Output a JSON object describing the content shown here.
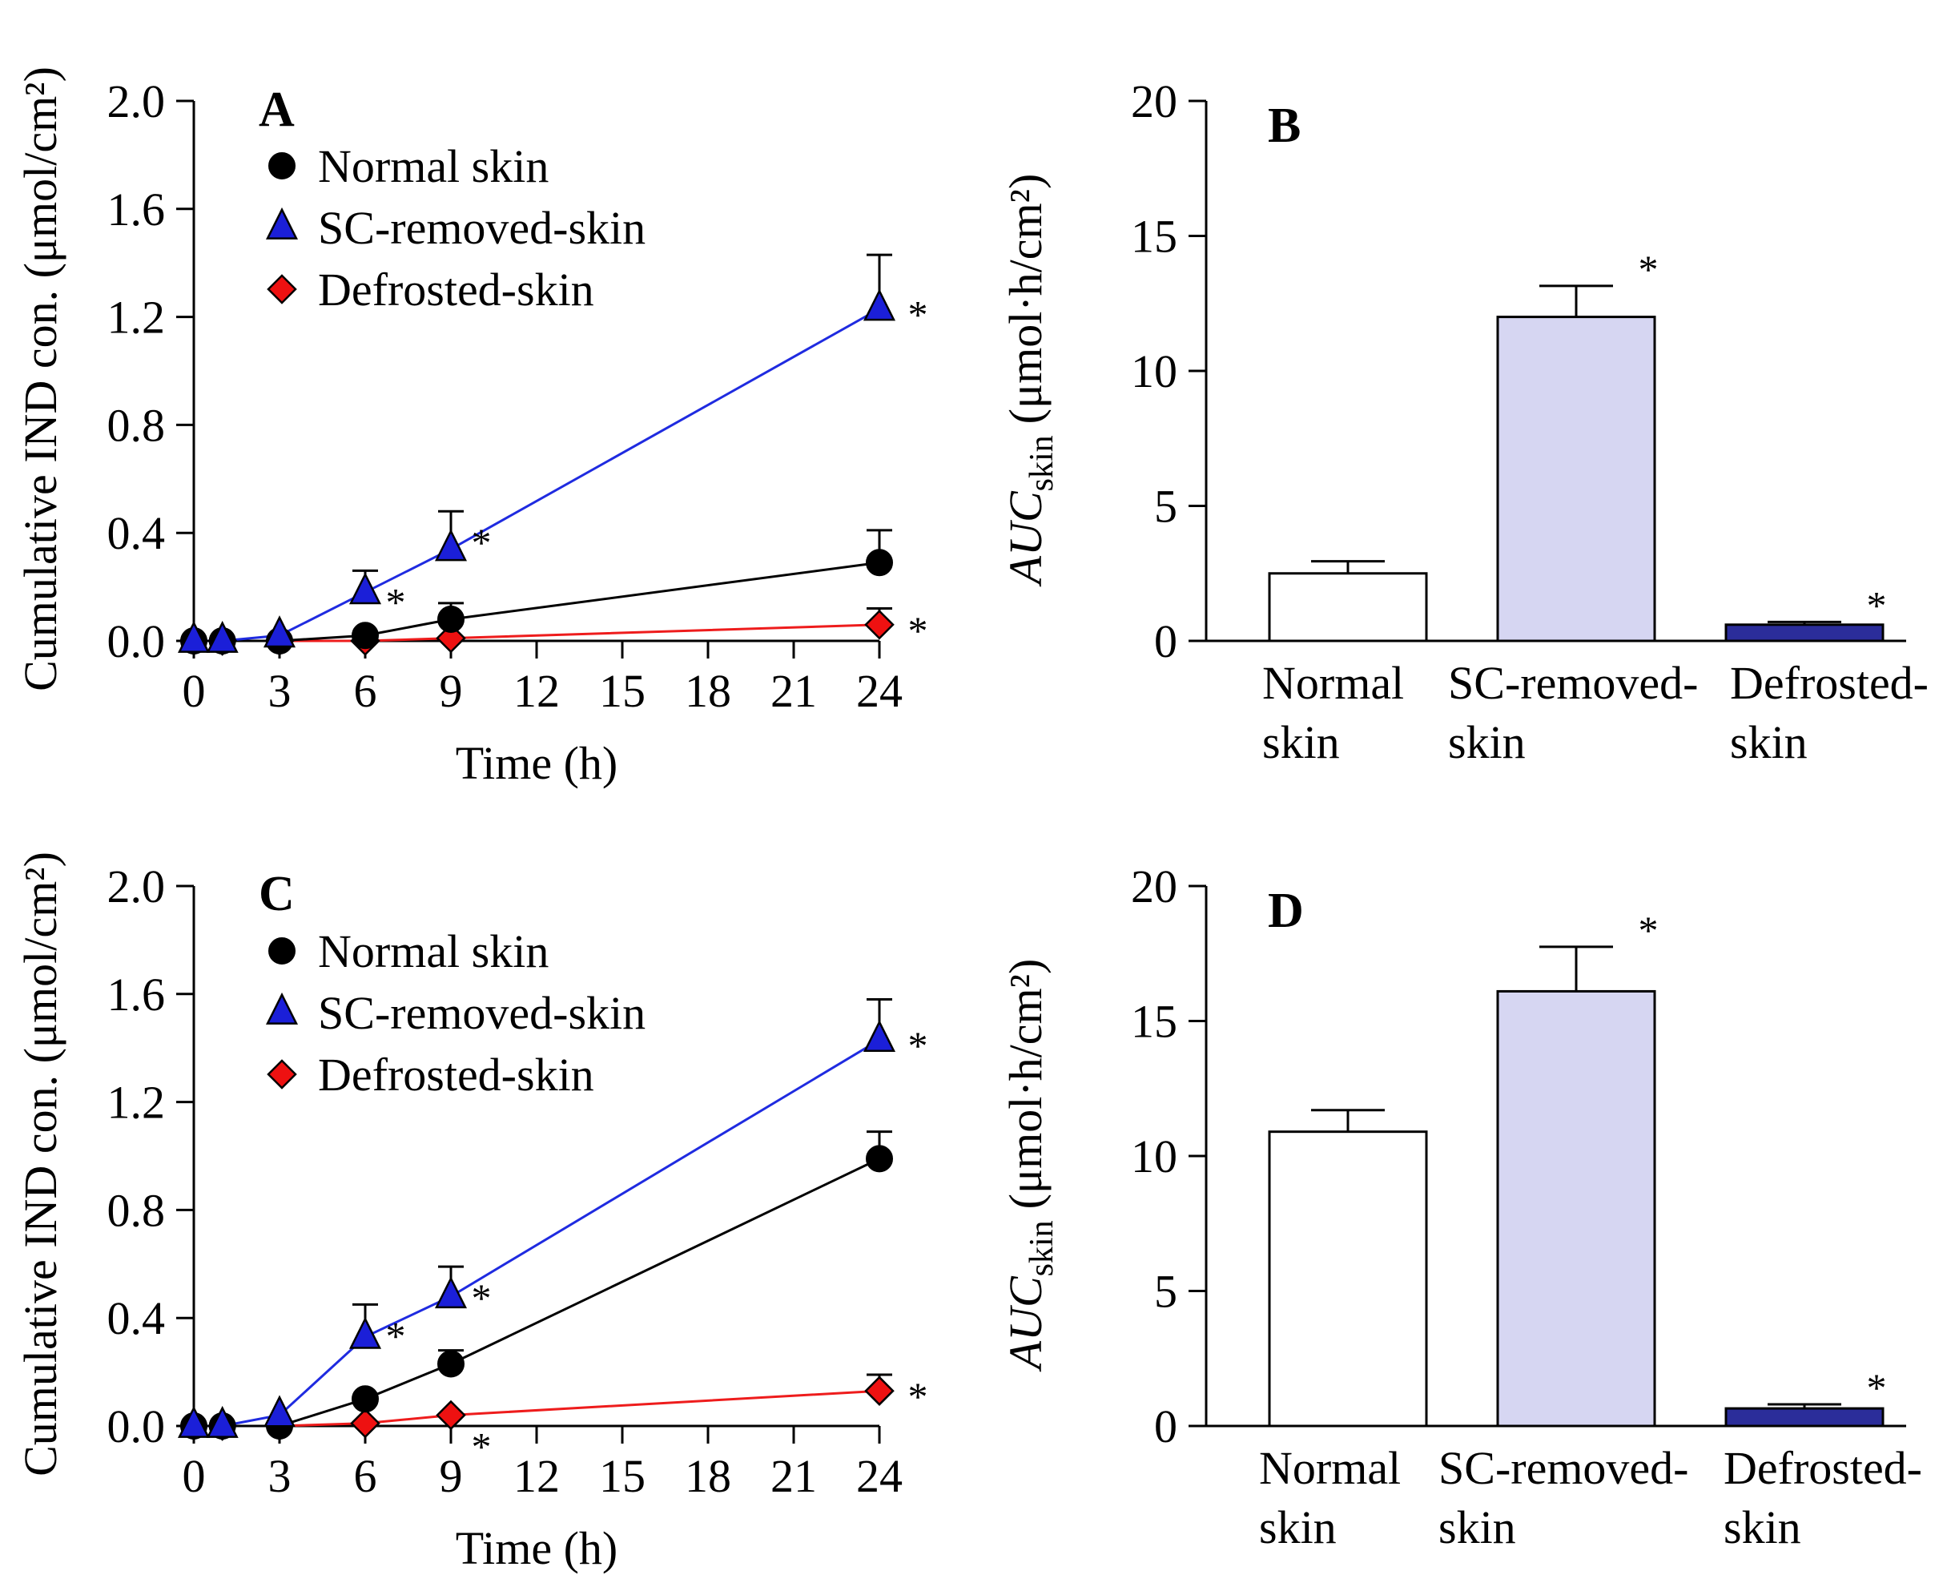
{
  "chart_data": [
    {
      "panel": "A",
      "type": "line",
      "title": "",
      "xlabel": "Time (h)",
      "ylabel": "Cumulative IND con. (μmol/cm²)",
      "xlim": [
        0,
        24
      ],
      "ylim": [
        0,
        2.0
      ],
      "xticks": [
        0,
        3,
        6,
        9,
        12,
        15,
        18,
        21,
        24
      ],
      "yticks": [
        0.0,
        0.4,
        0.8,
        1.2,
        1.6,
        2.0
      ],
      "ytick_labels": [
        "0.0",
        "0.4",
        "0.8",
        "1.2",
        "1.6",
        "2.0"
      ],
      "x": [
        0,
        1,
        3,
        6,
        9,
        24
      ],
      "series": [
        {
          "name": "Normal skin",
          "marker": "circle",
          "color": "#000000",
          "fill": "#000000",
          "values": [
            0.0,
            0.0,
            0.0,
            0.02,
            0.08,
            0.29
          ],
          "err": [
            0,
            0,
            0,
            0.01,
            0.06,
            0.12
          ],
          "sig": [
            false,
            false,
            false,
            false,
            false,
            false
          ]
        },
        {
          "name": "SC-removed-skin",
          "marker": "triangle",
          "color": "#1f2be0",
          "fill": "#1b1fd8",
          "values": [
            0.0,
            0.0,
            0.02,
            0.18,
            0.34,
            1.23
          ],
          "err": [
            0,
            0,
            0,
            0.08,
            0.14,
            0.2
          ],
          "sig": [
            false,
            false,
            false,
            true,
            true,
            true
          ]
        },
        {
          "name": "Defrosted-skin",
          "marker": "diamond",
          "color": "#ee1c1c",
          "fill": "#ee1111",
          "values": [
            0.0,
            0.0,
            0.0,
            0.0,
            0.01,
            0.06
          ],
          "err": [
            0,
            0,
            0,
            0,
            0,
            0.06
          ],
          "sig": [
            false,
            false,
            false,
            false,
            false,
            true
          ]
        }
      ],
      "asterisk": "*"
    },
    {
      "panel": "B",
      "type": "bar",
      "title": "",
      "xlabel": "",
      "ylabel": "AUC",
      "ylabel_sub": "skin",
      "ylabel_unit": "(μmol·h/cm²)",
      "ylim": [
        0,
        20
      ],
      "yticks": [
        0,
        5,
        10,
        15,
        20
      ],
      "categories": [
        "Normal skin",
        "SC-removed-skin",
        "Defrosted-skin"
      ],
      "category_lines": [
        [
          "Normal",
          "skin"
        ],
        [
          "SC-removed-",
          "skin"
        ],
        [
          "Defrosted-",
          "skin"
        ]
      ],
      "values": [
        2.5,
        12.0,
        0.6
      ],
      "err": [
        0.45,
        1.15,
        0.1
      ],
      "fills": [
        "#ffffff",
        "#d6d6f2",
        "#2b2d9a"
      ],
      "sig": [
        false,
        true,
        true
      ],
      "asterisk": "*"
    },
    {
      "panel": "C",
      "type": "line",
      "title": "",
      "xlabel": "Time (h)",
      "ylabel": "Cumulative IND con. (μmol/cm²)",
      "xlim": [
        0,
        24
      ],
      "ylim": [
        0,
        2.0
      ],
      "xticks": [
        0,
        3,
        6,
        9,
        12,
        15,
        18,
        21,
        24
      ],
      "yticks": [
        0.0,
        0.4,
        0.8,
        1.2,
        1.6,
        2.0
      ],
      "ytick_labels": [
        "0.0",
        "0.4",
        "0.8",
        "1.2",
        "1.6",
        "2.0"
      ],
      "x": [
        0,
        1,
        3,
        6,
        9,
        24
      ],
      "series": [
        {
          "name": "Normal skin",
          "marker": "circle",
          "color": "#000000",
          "fill": "#000000",
          "values": [
            0.0,
            0.0,
            0.0,
            0.1,
            0.23,
            0.99
          ],
          "err": [
            0,
            0,
            0,
            0,
            0.05,
            0.1
          ],
          "sig": [
            false,
            false,
            false,
            false,
            false,
            false
          ]
        },
        {
          "name": "SC-removed-skin",
          "marker": "triangle",
          "color": "#1f2be0",
          "fill": "#1b1fd8",
          "values": [
            0.0,
            0.0,
            0.04,
            0.33,
            0.48,
            1.43
          ],
          "err": [
            0,
            0,
            0,
            0.12,
            0.11,
            0.15
          ],
          "sig": [
            false,
            false,
            false,
            true,
            true,
            true
          ]
        },
        {
          "name": "Defrosted-skin",
          "marker": "diamond",
          "color": "#ee1c1c",
          "fill": "#ee1111",
          "values": [
            0.0,
            0.0,
            0.0,
            0.01,
            0.04,
            0.13
          ],
          "err": [
            0,
            0,
            0,
            0,
            0,
            0.06
          ],
          "sig": [
            false,
            false,
            false,
            false,
            true,
            true
          ]
        }
      ],
      "asterisk": "*"
    },
    {
      "panel": "D",
      "type": "bar",
      "title": "",
      "xlabel": "",
      "ylabel": "AUC",
      "ylabel_sub": "skin",
      "ylabel_unit": "(μmol·h/cm²)",
      "ylim": [
        0,
        20
      ],
      "yticks": [
        0,
        5,
        10,
        15,
        20
      ],
      "categories": [
        "Normal skin",
        "SC-removed-skin",
        "Defrosted-skin"
      ],
      "category_lines": [
        [
          "Normal",
          "skin"
        ],
        [
          "SC-removed-",
          "skin"
        ],
        [
          "Defrosted-",
          "skin"
        ]
      ],
      "values": [
        10.9,
        16.1,
        0.65
      ],
      "err": [
        0.8,
        1.65,
        0.15
      ],
      "fills": [
        "#ffffff",
        "#d6d6f2",
        "#2b2d9a"
      ],
      "sig": [
        false,
        true,
        true
      ],
      "asterisk": "*"
    }
  ]
}
